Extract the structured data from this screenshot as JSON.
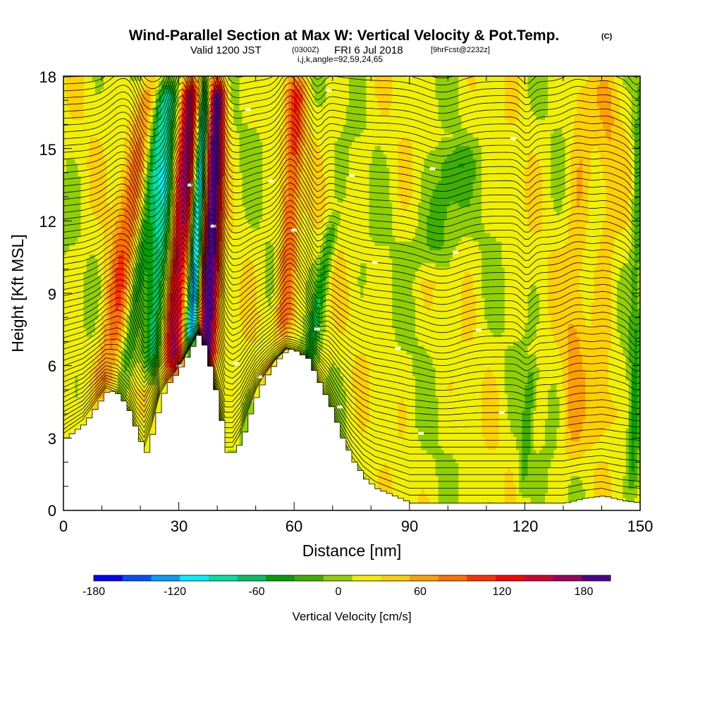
{
  "chart_data": {
    "type": "heatmap",
    "title": "Wind-Parallel Section at Max W: Vertical Velocity & Pot.Temp.",
    "title_mark": "(C)",
    "subtitle_main": "Valid 1200 JST",
    "subtitle_utc": "(0300Z)",
    "subtitle_date": "FRI 6 Jul 2018",
    "subtitle_fcst": "[9hrFcst@2232z]",
    "subtitle_indices": "i,j,k,angle=92,59,24,65",
    "xlabel": "Distance [nm]",
    "ylabel": "Height [Kft MSL]",
    "xlim": [
      0,
      150
    ],
    "ylim": [
      0,
      18
    ],
    "x_ticks": [
      0,
      30,
      60,
      90,
      120,
      150
    ],
    "x_tick_labels": [
      "0",
      "30",
      "60",
      "90",
      "120",
      "150"
    ],
    "x_minor_step": 10,
    "y_ticks": [
      0,
      3,
      6,
      9,
      12,
      15,
      18
    ],
    "y_tick_labels": [
      "0",
      "3",
      "6",
      "9",
      "12",
      "15",
      "18"
    ],
    "y_minor_step": 1,
    "colorbar": {
      "title": "Vertical Velocity [cm/s]",
      "bounds": [
        -180,
        200
      ],
      "step": 20,
      "tick_values": [
        -180,
        -120,
        -60,
        0,
        60,
        120,
        180
      ],
      "tick_labels": [
        "-180",
        "-120",
        "-60",
        "0",
        "60",
        "120",
        "180"
      ],
      "colors": [
        "#0000ff",
        "#0050ff",
        "#00a0ff",
        "#00f0ff",
        "#00e0a0",
        "#00c060",
        "#00a000",
        "#40b000",
        "#90d000",
        "#f0f000",
        "#ffd000",
        "#ffa000",
        "#ff7000",
        "#ff3000",
        "#ff0000",
        "#d00030",
        "#a00060",
        "#500090"
      ]
    },
    "terrain": [
      [
        0,
        3.0
      ],
      [
        5,
        3.6
      ],
      [
        8,
        4.3
      ],
      [
        11,
        5.0
      ],
      [
        14,
        4.8
      ],
      [
        17,
        4.0
      ],
      [
        19,
        3.0
      ],
      [
        21,
        2.4
      ],
      [
        23,
        3.4
      ],
      [
        25,
        4.7
      ],
      [
        27,
        5.3
      ],
      [
        29,
        5.7
      ],
      [
        31,
        6.2
      ],
      [
        33,
        6.8
      ],
      [
        35,
        7.4
      ],
      [
        37,
        6.3
      ],
      [
        39,
        5.0
      ],
      [
        41,
        3.3
      ],
      [
        42,
        2.4
      ],
      [
        44,
        2.4
      ],
      [
        46,
        3.0
      ],
      [
        48,
        4.0
      ],
      [
        50,
        4.9
      ],
      [
        52,
        5.5
      ],
      [
        55,
        6.2
      ],
      [
        58,
        6.7
      ],
      [
        60,
        6.6
      ],
      [
        63,
        6.3
      ],
      [
        66,
        5.3
      ],
      [
        69,
        4.3
      ],
      [
        72,
        3.0
      ],
      [
        75,
        2.0
      ],
      [
        78,
        1.3
      ],
      [
        81,
        0.9
      ],
      [
        84,
        0.7
      ],
      [
        87,
        0.5
      ],
      [
        90,
        0.3
      ],
      [
        95,
        0.3
      ],
      [
        100,
        0.3
      ],
      [
        110,
        0.3
      ],
      [
        120,
        0.3
      ],
      [
        130,
        0.3
      ],
      [
        135,
        0.5
      ],
      [
        140,
        0.6
      ],
      [
        145,
        0.4
      ],
      [
        150,
        0.3
      ]
    ],
    "updraft_bands": [
      {
        "x0": 10,
        "y0": 4.5,
        "x1": 22,
        "y1": 17.8,
        "w": 60,
        "width": 3.4
      },
      {
        "x0": 28,
        "y0": 5.5,
        "x1": 33,
        "y1": 17.8,
        "w": 140,
        "width": 2.8
      },
      {
        "x0": 37,
        "y0": 5.5,
        "x1": 40,
        "y1": 17.8,
        "w": 180,
        "width": 2.4
      },
      {
        "x0": 57,
        "y0": 7.0,
        "x1": 61,
        "y1": 17.8,
        "w": 75,
        "width": 2.4
      },
      {
        "x0": 132,
        "y0": 2.0,
        "x1": 135,
        "y1": 17.8,
        "w": 30,
        "width": 3.0
      },
      {
        "x0": 140,
        "y0": 3.0,
        "x1": 142,
        "y1": 17.8,
        "w": 25,
        "width": 3.2
      }
    ],
    "downdraft_bands": [
      {
        "x0": 23,
        "y0": 5.5,
        "x1": 28,
        "y1": 17.8,
        "w": -90,
        "width": 3.0
      },
      {
        "x0": 33,
        "y0": 6.5,
        "x1": 37,
        "y1": 17.8,
        "w": -150,
        "width": 1.6
      },
      {
        "x0": 16,
        "y0": 5.5,
        "x1": 26,
        "y1": 17.8,
        "w": -50,
        "width": 2.0
      },
      {
        "x0": 62,
        "y0": 4.5,
        "x1": 70,
        "y1": 12.0,
        "w": -55,
        "width": 1.6
      },
      {
        "x0": 95,
        "y0": 10.0,
        "x1": 102,
        "y1": 15.0,
        "w": -45,
        "width": 5.0
      },
      {
        "x0": 119,
        "y0": 0.5,
        "x1": 122,
        "y1": 6.0,
        "w": -40,
        "width": 1.5
      },
      {
        "x0": 148,
        "y0": 0.5,
        "x1": 150,
        "y1": 17.8,
        "w": -45,
        "width": 1.5
      }
    ],
    "theta_isentropes_start": 301,
    "theta_isentropes_step": 1,
    "theta_isentropes_count": 62
  }
}
